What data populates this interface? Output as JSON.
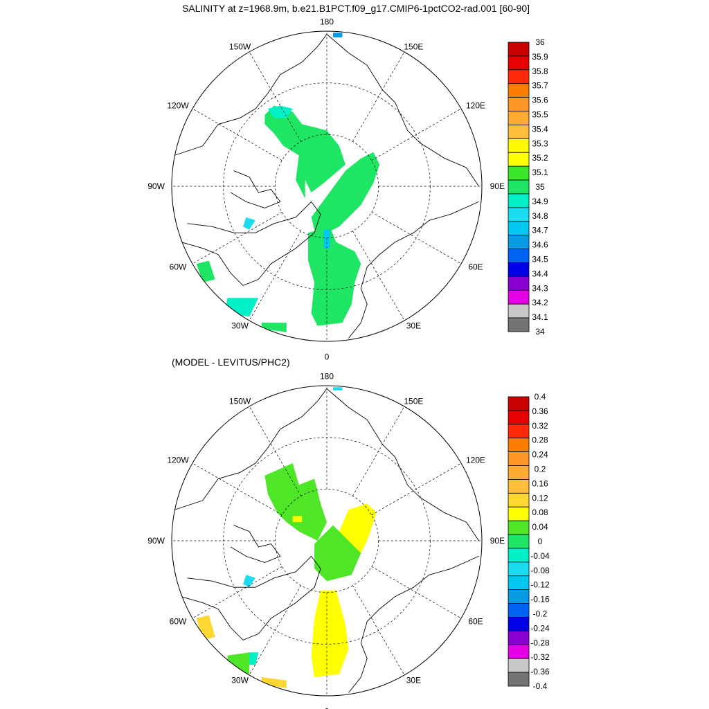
{
  "figure": {
    "title": "SALINITY at z=1968.9m, b.e21.B1PCT.f09_g17.CMIP6-1pctCO2-rad.001 [60-90]",
    "subtitle": "(MODEL - LEVITUS/PHC2)"
  },
  "colors": {
    "land_outline": "#000000",
    "grid": "#000000",
    "box_outline": "#000000"
  },
  "map_labels": [
    "180",
    "150E",
    "120E",
    "90E",
    "60E",
    "30E",
    "0",
    "30W",
    "60W",
    "90W",
    "120W",
    "150W"
  ],
  "top_map": {
    "colorbar": {
      "labels": [
        "36",
        "35.9",
        "35.8",
        "35.7",
        "35.6",
        "35.5",
        "35.4",
        "35.3",
        "35.2",
        "35.1",
        "35",
        "34.9",
        "34.8",
        "34.7",
        "34.6",
        "34.5",
        "34.4",
        "34.3",
        "34.2",
        "34.1",
        "34"
      ],
      "colors": [
        "#C80000",
        "#E60000",
        "#FF2A0A",
        "#FA7D00",
        "#FF9628",
        "#FFAA32",
        "#FFBE3C",
        "#FFFA00",
        "#FFFF00",
        "#3CE628",
        "#1EE664",
        "#00F0C8",
        "#1EDCF0",
        "#00C8F0",
        "#0A9BE6",
        "#0064F0",
        "#0000E6",
        "#8C00D2",
        "#E600E6",
        "#C8C8C8",
        "#737373"
      ]
    },
    "regions": [
      {
        "name": "greenland-fram-basin",
        "color": "#1EE664"
      },
      {
        "name": "eurasian-basin",
        "color": "#1EE664"
      },
      {
        "name": "canada-basin",
        "color": "#1EE664"
      },
      {
        "name": "beaufort-edge",
        "color": "#00F0C8"
      },
      {
        "name": "fram-strait-thin",
        "color": "#00C8F0"
      },
      {
        "name": "labrador-sea",
        "color": "#1EE664"
      },
      {
        "name": "iceland-cyan",
        "color": "#00F0C8"
      },
      {
        "name": "north-atlantic-strip",
        "color": "#1EE664"
      },
      {
        "name": "baffin-spot",
        "color": "#1EDCF0"
      },
      {
        "name": "bering-spot",
        "color": "#0A9BE6"
      }
    ]
  },
  "bottom_map": {
    "colorbar": {
      "labels": [
        "0.4",
        "0.36",
        "0.32",
        "0.28",
        "0.24",
        "0.2",
        "0.16",
        "0.12",
        "0.08",
        "0.04",
        "0",
        "-0.04",
        "-0.08",
        "-0.12",
        "-0.16",
        "-0.2",
        "-0.24",
        "-0.28",
        "-0.32",
        "-0.36",
        "-0.4"
      ],
      "colors": [
        "#C80000",
        "#E60000",
        "#FF2A0A",
        "#FA7D00",
        "#FF9628",
        "#FFAA32",
        "#FFBE3C",
        "#FFD732",
        "#FFFF00",
        "#50E628",
        "#1EE664",
        "#00F0C8",
        "#1EDCF0",
        "#00C8F0",
        "#0A9BE6",
        "#0064F0",
        "#0000E6",
        "#8C00D2",
        "#E600E6",
        "#C8C8C8",
        "#737373"
      ]
    },
    "regions": [
      {
        "name": "canada-basin",
        "color": "#50E628"
      },
      {
        "name": "canada-basin-yellow-island",
        "color": "#FFFF00"
      },
      {
        "name": "eurasian-basin-yellow",
        "color": "#FFFF00"
      },
      {
        "name": "central-green",
        "color": "#50E628"
      },
      {
        "name": "greenland-sea-yellow",
        "color": "#FFFF00"
      },
      {
        "name": "labrador-sea",
        "color": "#FFD732"
      },
      {
        "name": "iceland-green",
        "color": "#50E628"
      },
      {
        "name": "iceland-cyan",
        "color": "#00F0C8"
      },
      {
        "name": "north-atlantic-strip",
        "color": "#FFD732"
      },
      {
        "name": "baffin-spot",
        "color": "#1EDCF0"
      },
      {
        "name": "bering-spot",
        "color": "#1EDCF0"
      }
    ]
  }
}
